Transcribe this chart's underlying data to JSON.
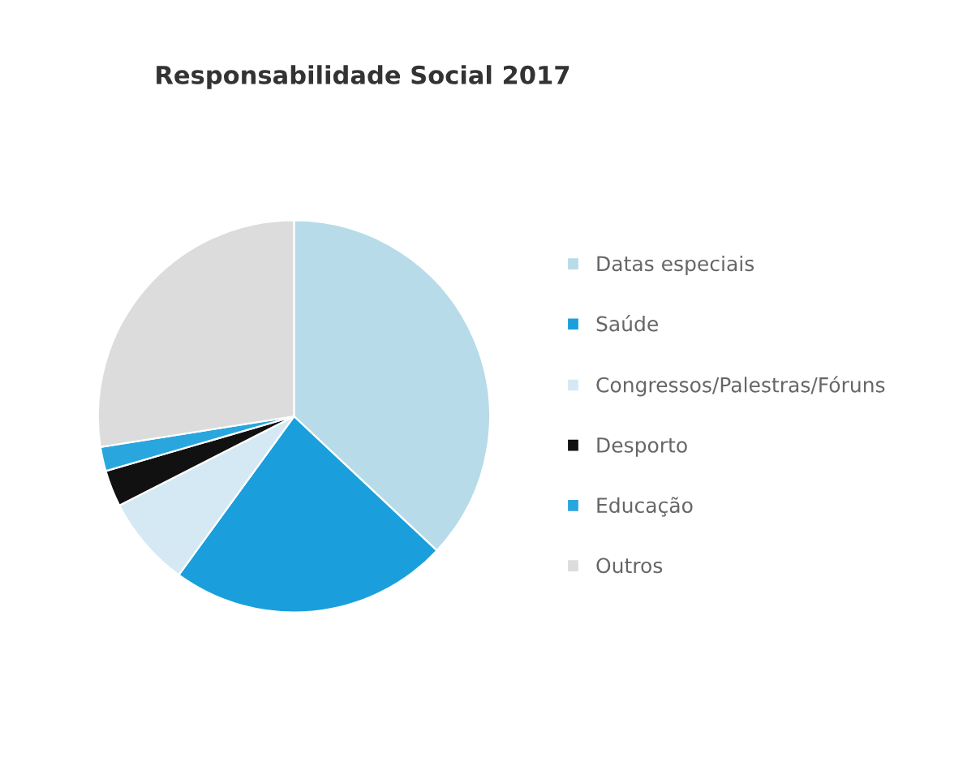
{
  "chart_data": {
    "type": "pie",
    "title": "Responsabilidade Social 2017",
    "categories": [
      "Datas especiais",
      "Saúde",
      "Congressos/Palestras/Fóruns",
      "Desporto",
      "Educação",
      "Outros"
    ],
    "values": [
      37,
      23,
      7.5,
      3,
      2,
      27.5
    ],
    "colors": [
      "#b7dbe9",
      "#1a9fdc",
      "#d4e9f3",
      "#111111",
      "#2aa6de",
      "#dcdcdc"
    ],
    "legend": "right"
  }
}
